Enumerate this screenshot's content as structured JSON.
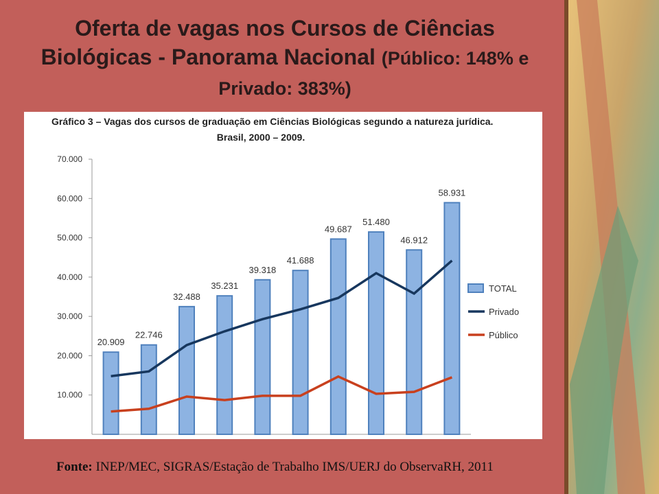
{
  "slide": {
    "title": "Oferta de vagas nos Cursos de Ciências Biológicas - Panorama Nacional",
    "title_note": "(Público: 148% e Privado: 383%)"
  },
  "chart_data": {
    "type": "bar",
    "title": "Gráfico 3 – Vagas dos cursos de graduação em Ciências Biológicas segundo a natureza jurídica.",
    "subtitle": "Brasil, 2000 – 2009.",
    "categories": [
      null,
      null,
      null,
      null,
      null,
      null,
      null,
      null,
      null,
      null
    ],
    "ylim": [
      0,
      70000
    ],
    "yticks": [
      {
        "value": 10000,
        "label": "10.000"
      },
      {
        "value": 20000,
        "label": "20.000"
      },
      {
        "value": 30000,
        "label": "30.000"
      },
      {
        "value": 40000,
        "label": "40.000"
      },
      {
        "value": 50000,
        "label": "50.000"
      },
      {
        "value": 60000,
        "label": "60.000"
      },
      {
        "value": 70000,
        "label": "70.000"
      }
    ],
    "legend": "right",
    "series": [
      {
        "name": "TOTAL",
        "mark": "bar",
        "color": "#8db3e2",
        "values": [
          20909,
          22746,
          32488,
          35231,
          39318,
          41688,
          49687,
          51480,
          46912,
          58931
        ],
        "value_labels": [
          "20.909",
          "22.746",
          "32.488",
          "35.231",
          "39.318",
          "41.688",
          "49.687",
          "51.480",
          "46.912",
          "58.931"
        ]
      },
      {
        "name": "Privado",
        "mark": "line",
        "color": "#17375e",
        "values": [
          14800,
          16000,
          22700,
          26200,
          29300,
          31800,
          34700,
          41000,
          35800,
          44200
        ]
      },
      {
        "name": "Público",
        "mark": "line",
        "color": "#c8401e",
        "values": [
          5800,
          6500,
          9600,
          8700,
          9800,
          9800,
          14700,
          10300,
          10800,
          14500
        ]
      }
    ]
  },
  "source": {
    "label": "Fonte:",
    "text": "INEP/MEC, SIGRAS/Estação de Trabalho IMS/UERJ do ObservaRH, 2011"
  }
}
